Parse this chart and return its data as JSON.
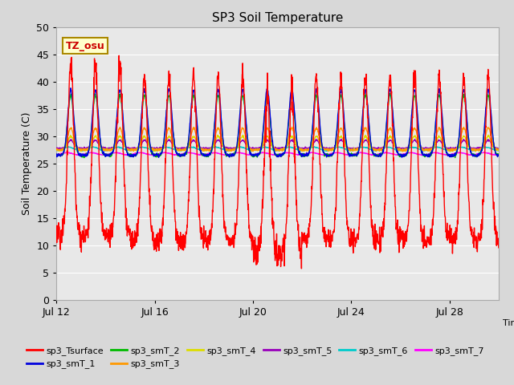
{
  "title": "SP3 Soil Temperature",
  "ylabel": "Soil Temperature (C)",
  "xlabel": "Time",
  "ylim": [
    0,
    50
  ],
  "yticks": [
    0,
    5,
    10,
    15,
    20,
    25,
    30,
    35,
    40,
    45,
    50
  ],
  "tz_label": "TZ_osu",
  "background_color": "#d8d8d8",
  "plot_bg_color": "#e8e8e8",
  "series_colors": {
    "sp3_Tsurface": "#ff0000",
    "sp3_smT_1": "#0000dd",
    "sp3_smT_2": "#00bb00",
    "sp3_smT_3": "#ff9900",
    "sp3_smT_4": "#dddd00",
    "sp3_smT_5": "#9900bb",
    "sp3_smT_6": "#00cccc",
    "sp3_smT_7": "#ff00ff"
  },
  "xtick_labels": [
    "Jul 12",
    "Jul 16",
    "Jul 20",
    "Jul 24",
    "Jul 28"
  ],
  "xtick_positions": [
    0,
    4,
    8,
    12,
    16
  ],
  "n_days": 18,
  "pts_per_day": 96
}
